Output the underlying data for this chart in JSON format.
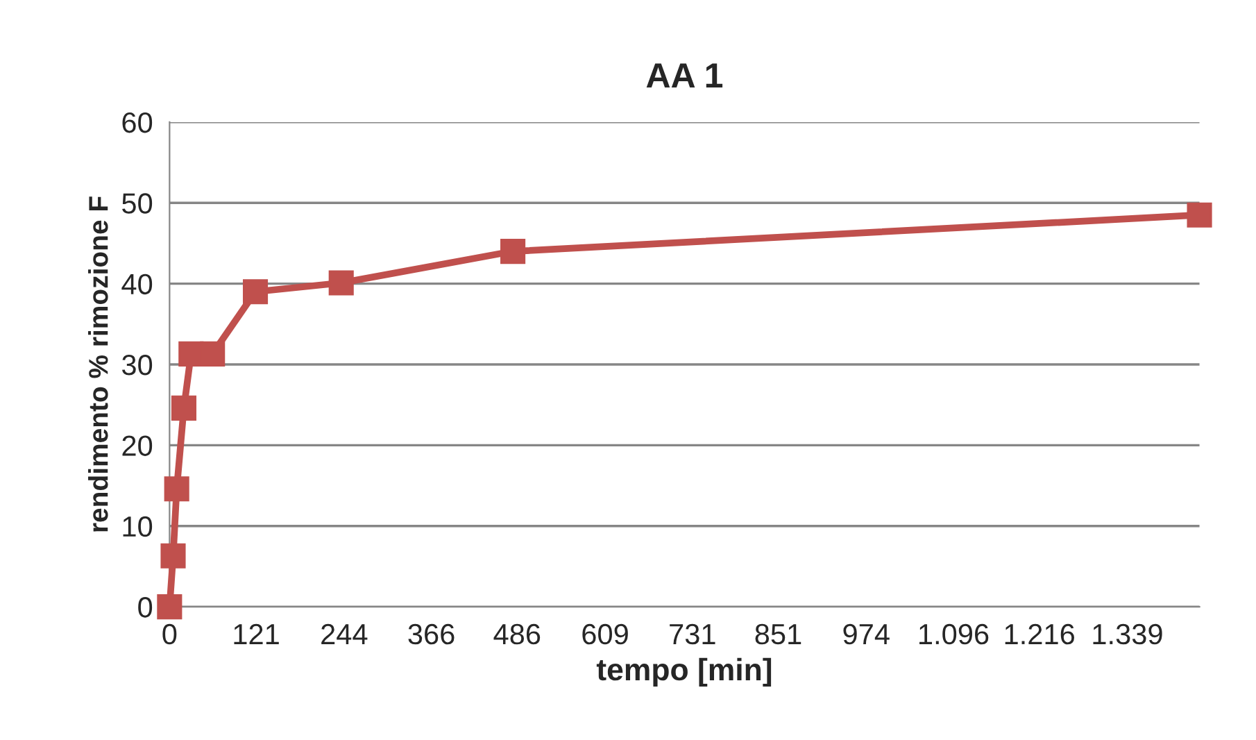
{
  "chart_data": {
    "type": "line",
    "title": "AA 1",
    "xlabel": "tempo [min]",
    "ylabel": "rendimento % rimozione F",
    "x": [
      0,
      5,
      10,
      20,
      30,
      60,
      120,
      240,
      480,
      1440
    ],
    "series": [
      {
        "color": "#c0504d",
        "values": [
          0,
          6.3,
          14.6,
          24.6,
          31.3,
          31.3,
          39.0,
          40.1,
          44.0,
          48.5
        ]
      }
    ],
    "xlim": [
      0,
      1440
    ],
    "xticks": [
      0,
      121,
      244,
      366,
      486,
      609,
      731,
      851,
      974,
      {
        "value": 1096,
        "label": "1.096"
      },
      {
        "value": 1216,
        "label": "1.216"
      },
      {
        "value": 1339,
        "label": "1.339"
      }
    ],
    "ylim": [
      0,
      60
    ],
    "yticks": [
      0,
      10,
      20,
      30,
      40,
      50,
      60
    ],
    "grid": "y",
    "marker": "square",
    "line_style": "solid"
  }
}
